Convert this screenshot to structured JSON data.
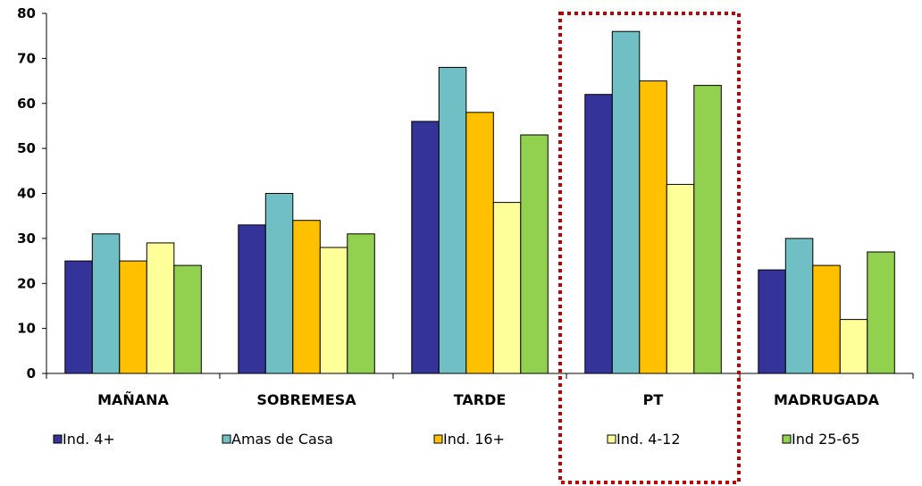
{
  "chart_data": {
    "type": "bar",
    "title": "",
    "xlabel": "",
    "ylabel": "",
    "ylim": [
      0,
      80
    ],
    "yticks": [
      0,
      10,
      20,
      30,
      40,
      50,
      60,
      70,
      80
    ],
    "grid": false,
    "legend_position": "bottom",
    "categories": [
      "MAÑANA",
      "SOBREMESA",
      "TARDE",
      "PT",
      "MADRUGADA"
    ],
    "series": [
      {
        "name": "Ind. 4+",
        "color": "#333399",
        "values": [
          25,
          33,
          56,
          62,
          23
        ]
      },
      {
        "name": "Amas de Casa",
        "color": "#70BFC4",
        "values": [
          31,
          40,
          68,
          76,
          30
        ]
      },
      {
        "name": "Ind. 16+",
        "color": "#FFC000",
        "values": [
          25,
          34,
          58,
          65,
          24
        ]
      },
      {
        "name": "Ind. 4-12",
        "color": "#FFFF99",
        "values": [
          29,
          28,
          38,
          42,
          12
        ]
      },
      {
        "name": "Ind 25-65",
        "color": "#92D050",
        "values": [
          24,
          31,
          53,
          64,
          27
        ]
      }
    ],
    "highlight": {
      "category": "PT",
      "style": "dotted-box",
      "color": "#C00000"
    }
  }
}
